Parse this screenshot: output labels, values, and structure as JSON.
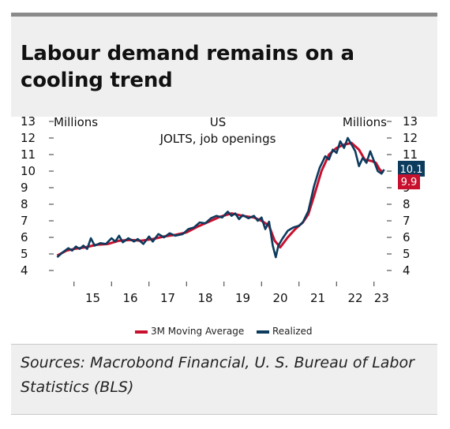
{
  "title": "Labour demand remains on a cooling trend",
  "sources": "Sources: Macrobond Financial, U. S. Bureau of Labor Statistics (BLS)",
  "chart_data": {
    "type": "line",
    "subtitle_line1": "US",
    "subtitle_line2": "JOLTS, job openings",
    "ylabel_left": "Millions",
    "ylabel_right": "Millions",
    "ylim": [
      4,
      13
    ],
    "yticks": [
      4,
      5,
      6,
      7,
      8,
      9,
      10,
      11,
      12,
      13
    ],
    "xlim": [
      2014.5,
      2023.3
    ],
    "xticks": [
      {
        "label": "15",
        "value": 2015.5
      },
      {
        "label": "16",
        "value": 2016.5
      },
      {
        "label": "17",
        "value": 2017.5
      },
      {
        "label": "18",
        "value": 2018.5
      },
      {
        "label": "19",
        "value": 2019.5
      },
      {
        "label": "20",
        "value": 2020.5
      },
      {
        "label": "21",
        "value": 2021.5
      },
      {
        "label": "22",
        "value": 2022.5
      },
      {
        "label": "23",
        "value": 2023.2
      }
    ],
    "xtick_marks": [
      2015,
      2016,
      2017,
      2018,
      2019,
      2020,
      2021,
      2022,
      2023
    ],
    "legend_position": "bottom",
    "series": [
      {
        "name": "3M Moving Average",
        "color": "#c8102e",
        "end_label": "9.9",
        "points": [
          [
            2014.55,
            4.9
          ],
          [
            2014.8,
            5.2
          ],
          [
            2015.0,
            5.3
          ],
          [
            2015.3,
            5.4
          ],
          [
            2015.6,
            5.55
          ],
          [
            2015.9,
            5.6
          ],
          [
            2016.2,
            5.8
          ],
          [
            2016.5,
            5.85
          ],
          [
            2016.8,
            5.8
          ],
          [
            2017.1,
            5.9
          ],
          [
            2017.4,
            6.05
          ],
          [
            2017.7,
            6.15
          ],
          [
            2018.0,
            6.3
          ],
          [
            2018.3,
            6.65
          ],
          [
            2018.6,
            6.95
          ],
          [
            2018.9,
            7.25
          ],
          [
            2019.2,
            7.45
          ],
          [
            2019.5,
            7.3
          ],
          [
            2019.8,
            7.2
          ],
          [
            2020.0,
            7.0
          ],
          [
            2020.2,
            6.7
          ],
          [
            2020.35,
            5.8
          ],
          [
            2020.5,
            5.4
          ],
          [
            2020.7,
            6.0
          ],
          [
            2020.9,
            6.5
          ],
          [
            2021.1,
            6.9
          ],
          [
            2021.25,
            7.4
          ],
          [
            2021.4,
            8.5
          ],
          [
            2021.6,
            10.0
          ],
          [
            2021.8,
            11.0
          ],
          [
            2022.0,
            11.4
          ],
          [
            2022.2,
            11.6
          ],
          [
            2022.4,
            11.7
          ],
          [
            2022.6,
            11.3
          ],
          [
            2022.75,
            10.7
          ],
          [
            2022.95,
            10.6
          ],
          [
            2023.05,
            10.5
          ],
          [
            2023.15,
            10.1
          ],
          [
            2023.25,
            9.9
          ]
        ]
      },
      {
        "name": "Realized",
        "color": "#0c3b5e",
        "end_label": "10.1",
        "points": [
          [
            2014.55,
            4.8
          ],
          [
            2014.7,
            5.1
          ],
          [
            2014.85,
            5.35
          ],
          [
            2014.95,
            5.2
          ],
          [
            2015.05,
            5.45
          ],
          [
            2015.15,
            5.3
          ],
          [
            2015.25,
            5.5
          ],
          [
            2015.35,
            5.3
          ],
          [
            2015.45,
            5.95
          ],
          [
            2015.55,
            5.5
          ],
          [
            2015.7,
            5.65
          ],
          [
            2015.85,
            5.6
          ],
          [
            2016.0,
            5.95
          ],
          [
            2016.1,
            5.75
          ],
          [
            2016.2,
            6.1
          ],
          [
            2016.3,
            5.7
          ],
          [
            2016.45,
            5.95
          ],
          [
            2016.6,
            5.75
          ],
          [
            2016.7,
            5.9
          ],
          [
            2016.85,
            5.6
          ],
          [
            2017.0,
            6.05
          ],
          [
            2017.1,
            5.75
          ],
          [
            2017.25,
            6.2
          ],
          [
            2017.4,
            6.0
          ],
          [
            2017.55,
            6.25
          ],
          [
            2017.7,
            6.1
          ],
          [
            2017.9,
            6.2
          ],
          [
            2018.05,
            6.5
          ],
          [
            2018.2,
            6.6
          ],
          [
            2018.35,
            6.9
          ],
          [
            2018.5,
            6.85
          ],
          [
            2018.65,
            7.15
          ],
          [
            2018.8,
            7.3
          ],
          [
            2018.95,
            7.2
          ],
          [
            2019.1,
            7.55
          ],
          [
            2019.2,
            7.3
          ],
          [
            2019.3,
            7.45
          ],
          [
            2019.4,
            7.1
          ],
          [
            2019.5,
            7.35
          ],
          [
            2019.65,
            7.15
          ],
          [
            2019.8,
            7.3
          ],
          [
            2019.9,
            7.0
          ],
          [
            2020.0,
            7.2
          ],
          [
            2020.1,
            6.5
          ],
          [
            2020.2,
            6.95
          ],
          [
            2020.3,
            5.5
          ],
          [
            2020.38,
            4.8
          ],
          [
            2020.45,
            5.5
          ],
          [
            2020.55,
            5.9
          ],
          [
            2020.7,
            6.4
          ],
          [
            2020.85,
            6.6
          ],
          [
            2021.0,
            6.7
          ],
          [
            2021.1,
            6.9
          ],
          [
            2021.25,
            7.6
          ],
          [
            2021.4,
            9.1
          ],
          [
            2021.55,
            10.2
          ],
          [
            2021.7,
            10.9
          ],
          [
            2021.8,
            10.7
          ],
          [
            2021.9,
            11.3
          ],
          [
            2022.0,
            11.1
          ],
          [
            2022.1,
            11.8
          ],
          [
            2022.2,
            11.4
          ],
          [
            2022.3,
            12.0
          ],
          [
            2022.4,
            11.6
          ],
          [
            2022.5,
            11.2
          ],
          [
            2022.6,
            10.3
          ],
          [
            2022.7,
            10.8
          ],
          [
            2022.8,
            10.5
          ],
          [
            2022.9,
            11.2
          ],
          [
            2023.0,
            10.6
          ],
          [
            2023.1,
            10.0
          ],
          [
            2023.2,
            9.85
          ],
          [
            2023.27,
            10.1
          ]
        ]
      }
    ]
  }
}
